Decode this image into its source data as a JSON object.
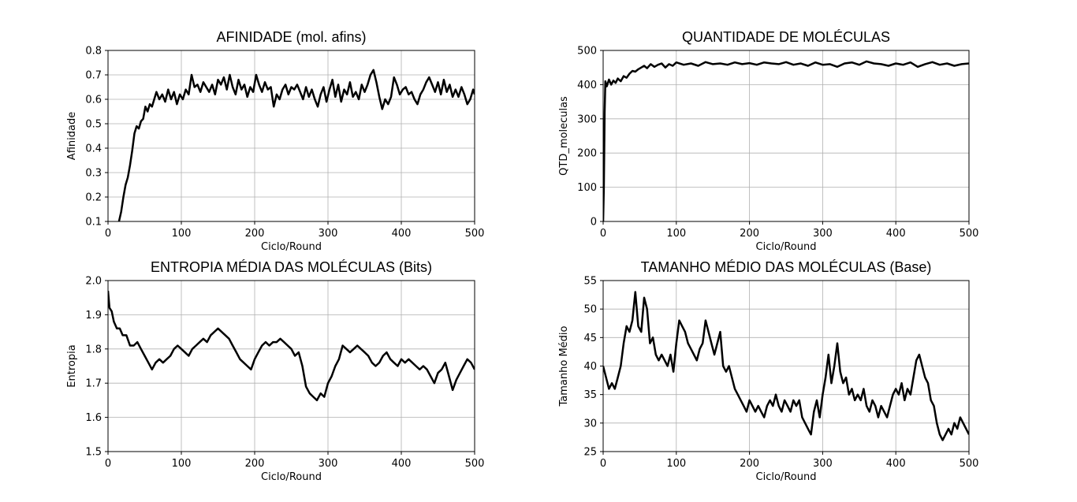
{
  "chart_data": [
    {
      "type": "line",
      "title": "AFINIDADE (mol. afins)",
      "xlabel": "Ciclo/Round",
      "ylabel": "Afinidade",
      "xlim": [
        0,
        500
      ],
      "ylim": [
        0.1,
        0.8
      ],
      "xticks": [
        "0",
        "100",
        "200",
        "300",
        "400",
        "500"
      ],
      "yticks": [
        "0.1",
        "0.2",
        "0.3",
        "0.4",
        "0.5",
        "0.6",
        "0.7",
        "0.8"
      ],
      "grid": true,
      "line_color": "#000000",
      "series": [
        {
          "x": [
            15,
            18,
            21,
            24,
            27,
            30,
            33,
            36,
            39,
            42,
            45,
            48,
            51,
            54,
            57,
            60,
            63,
            66,
            70,
            74,
            78,
            82,
            86,
            90,
            94,
            98,
            102,
            106,
            110,
            114,
            118,
            122,
            126,
            130,
            134,
            138,
            142,
            146,
            150,
            154,
            158,
            162,
            166,
            170,
            174,
            178,
            182,
            186,
            190,
            194,
            198,
            202,
            206,
            210,
            214,
            218,
            222,
            226,
            230,
            234,
            238,
            242,
            246,
            250,
            254,
            258,
            262,
            266,
            270,
            274,
            278,
            282,
            286,
            290,
            294,
            298,
            302,
            306,
            310,
            314,
            318,
            322,
            326,
            330,
            334,
            338,
            342,
            346,
            350,
            354,
            358,
            362,
            366,
            370,
            374,
            378,
            382,
            386,
            390,
            394,
            398,
            402,
            406,
            410,
            414,
            418,
            422,
            426,
            430,
            434,
            438,
            442,
            446,
            450,
            454,
            458,
            462,
            466,
            470,
            474,
            478,
            482,
            486,
            490,
            494,
            498,
            500
          ],
          "y": [
            0.1,
            0.14,
            0.2,
            0.25,
            0.28,
            0.33,
            0.39,
            0.46,
            0.49,
            0.48,
            0.51,
            0.52,
            0.57,
            0.55,
            0.58,
            0.57,
            0.6,
            0.63,
            0.6,
            0.62,
            0.59,
            0.64,
            0.6,
            0.63,
            0.58,
            0.62,
            0.6,
            0.64,
            0.62,
            0.7,
            0.65,
            0.66,
            0.63,
            0.67,
            0.65,
            0.63,
            0.66,
            0.62,
            0.68,
            0.66,
            0.69,
            0.64,
            0.7,
            0.65,
            0.62,
            0.68,
            0.64,
            0.66,
            0.61,
            0.65,
            0.63,
            0.7,
            0.66,
            0.63,
            0.67,
            0.64,
            0.65,
            0.57,
            0.62,
            0.6,
            0.64,
            0.66,
            0.62,
            0.65,
            0.64,
            0.66,
            0.63,
            0.6,
            0.65,
            0.61,
            0.64,
            0.6,
            0.57,
            0.62,
            0.65,
            0.59,
            0.64,
            0.68,
            0.61,
            0.66,
            0.59,
            0.64,
            0.62,
            0.67,
            0.61,
            0.63,
            0.6,
            0.66,
            0.63,
            0.66,
            0.7,
            0.72,
            0.67,
            0.61,
            0.56,
            0.6,
            0.58,
            0.61,
            0.69,
            0.66,
            0.62,
            0.64,
            0.65,
            0.62,
            0.63,
            0.6,
            0.58,
            0.62,
            0.64,
            0.67,
            0.69,
            0.66,
            0.63,
            0.67,
            0.62,
            0.68,
            0.63,
            0.66,
            0.61,
            0.64,
            0.61,
            0.65,
            0.62,
            0.58,
            0.6,
            0.64,
            0.62
          ]
        }
      ]
    },
    {
      "type": "line",
      "title": "QUANTIDADE DE MOLÉCULAS",
      "xlabel": "Ciclo/Round",
      "ylabel": "QTD_moleculas",
      "xlim": [
        0,
        500
      ],
      "ylim": [
        0,
        500
      ],
      "xticks": [
        "0",
        "100",
        "200",
        "300",
        "400",
        "500"
      ],
      "yticks": [
        "0",
        "100",
        "200",
        "300",
        "400",
        "500"
      ],
      "grid": true,
      "line_color": "#000000",
      "series": [
        {
          "x": [
            0,
            1,
            2,
            3,
            5,
            8,
            11,
            14,
            17,
            20,
            24,
            28,
            32,
            36,
            40,
            44,
            48,
            52,
            56,
            60,
            65,
            70,
            75,
            80,
            85,
            90,
            95,
            100,
            110,
            120,
            130,
            140,
            150,
            160,
            170,
            180,
            190,
            200,
            210,
            220,
            230,
            240,
            250,
            260,
            270,
            280,
            290,
            300,
            310,
            320,
            330,
            340,
            350,
            360,
            370,
            380,
            390,
            400,
            410,
            420,
            430,
            440,
            450,
            460,
            470,
            480,
            490,
            500
          ],
          "y": [
            0,
            100,
            320,
            410,
            395,
            415,
            400,
            412,
            405,
            418,
            410,
            425,
            420,
            432,
            440,
            438,
            445,
            450,
            455,
            448,
            460,
            452,
            458,
            462,
            450,
            460,
            455,
            465,
            458,
            462,
            455,
            466,
            460,
            462,
            458,
            465,
            460,
            463,
            458,
            465,
            462,
            460,
            466,
            458,
            462,
            455,
            465,
            458,
            460,
            452,
            462,
            465,
            458,
            468,
            462,
            460,
            455,
            462,
            458,
            465,
            452,
            460,
            466,
            458,
            462,
            455,
            460,
            462
          ]
        }
      ]
    },
    {
      "type": "line",
      "title": "ENTROPIA MÉDIA DAS MOLÉCULAS (Bits)",
      "xlabel": "Ciclo/Round",
      "ylabel": "Entropia",
      "xlim": [
        0,
        500
      ],
      "ylim": [
        1.5,
        2.0
      ],
      "xticks": [
        "0",
        "100",
        "200",
        "300",
        "400",
        "500"
      ],
      "yticks": [
        "1.5",
        "1.6",
        "1.7",
        "1.8",
        "1.9",
        "2.0"
      ],
      "grid": true,
      "line_color": "#000000",
      "series": [
        {
          "x": [
            0,
            2,
            5,
            8,
            12,
            16,
            20,
            25,
            30,
            35,
            40,
            45,
            50,
            55,
            60,
            65,
            70,
            75,
            80,
            85,
            90,
            95,
            100,
            105,
            110,
            115,
            120,
            125,
            130,
            135,
            140,
            145,
            150,
            155,
            160,
            165,
            170,
            175,
            180,
            185,
            190,
            195,
            200,
            205,
            210,
            215,
            220,
            225,
            230,
            235,
            240,
            245,
            250,
            255,
            260,
            265,
            270,
            275,
            280,
            285,
            290,
            295,
            300,
            305,
            310,
            315,
            320,
            325,
            330,
            335,
            340,
            345,
            350,
            355,
            360,
            365,
            370,
            375,
            380,
            385,
            390,
            395,
            400,
            405,
            410,
            415,
            420,
            425,
            430,
            435,
            440,
            445,
            450,
            455,
            460,
            465,
            470,
            475,
            480,
            485,
            490,
            495,
            500
          ],
          "y": [
            1.97,
            1.92,
            1.91,
            1.88,
            1.86,
            1.86,
            1.84,
            1.84,
            1.81,
            1.81,
            1.82,
            1.8,
            1.78,
            1.76,
            1.74,
            1.76,
            1.77,
            1.76,
            1.77,
            1.78,
            1.8,
            1.81,
            1.8,
            1.79,
            1.78,
            1.8,
            1.81,
            1.82,
            1.83,
            1.82,
            1.84,
            1.85,
            1.86,
            1.85,
            1.84,
            1.83,
            1.81,
            1.79,
            1.77,
            1.76,
            1.75,
            1.74,
            1.77,
            1.79,
            1.81,
            1.82,
            1.81,
            1.82,
            1.82,
            1.83,
            1.82,
            1.81,
            1.8,
            1.78,
            1.79,
            1.75,
            1.69,
            1.67,
            1.66,
            1.65,
            1.67,
            1.66,
            1.7,
            1.72,
            1.75,
            1.77,
            1.81,
            1.8,
            1.79,
            1.8,
            1.81,
            1.8,
            1.79,
            1.78,
            1.76,
            1.75,
            1.76,
            1.78,
            1.79,
            1.77,
            1.76,
            1.75,
            1.77,
            1.76,
            1.77,
            1.76,
            1.75,
            1.74,
            1.75,
            1.74,
            1.72,
            1.7,
            1.73,
            1.74,
            1.76,
            1.72,
            1.68,
            1.71,
            1.73,
            1.75,
            1.77,
            1.76,
            1.74
          ]
        }
      ]
    },
    {
      "type": "line",
      "title": "TAMANHO MÉDIO DAS MOLÉCULAS (Base)",
      "xlabel": "Ciclo/Round",
      "ylabel": "Tamanho Médio",
      "xlim": [
        0,
        500
      ],
      "ylim": [
        25,
        55
      ],
      "xticks": [
        "0",
        "100",
        "200",
        "300",
        "400",
        "500"
      ],
      "yticks": [
        "25",
        "30",
        "35",
        "40",
        "45",
        "50",
        "55"
      ],
      "grid": true,
      "line_color": "#000000",
      "series": [
        {
          "x": [
            0,
            4,
            8,
            12,
            16,
            20,
            24,
            28,
            32,
            36,
            40,
            44,
            48,
            52,
            56,
            60,
            64,
            68,
            72,
            76,
            80,
            84,
            88,
            92,
            96,
            100,
            104,
            108,
            112,
            116,
            120,
            124,
            128,
            132,
            136,
            140,
            144,
            148,
            152,
            156,
            160,
            164,
            168,
            172,
            176,
            180,
            184,
            188,
            192,
            196,
            200,
            204,
            208,
            212,
            216,
            220,
            224,
            228,
            232,
            236,
            240,
            244,
            248,
            252,
            256,
            260,
            264,
            268,
            272,
            276,
            280,
            284,
            288,
            292,
            296,
            300,
            304,
            308,
            312,
            316,
            320,
            324,
            328,
            332,
            336,
            340,
            344,
            348,
            352,
            356,
            360,
            364,
            368,
            372,
            376,
            380,
            384,
            388,
            392,
            396,
            400,
            404,
            408,
            412,
            416,
            420,
            424,
            428,
            432,
            436,
            440,
            444,
            448,
            452,
            456,
            460,
            464,
            468,
            472,
            476,
            480,
            484,
            488,
            492,
            496,
            500
          ],
          "y": [
            40,
            38,
            36,
            37,
            36,
            38,
            40,
            44,
            47,
            46,
            48,
            53,
            47,
            46,
            52,
            50,
            44,
            45,
            42,
            41,
            42,
            41,
            40,
            42,
            39,
            44,
            48,
            47,
            46,
            44,
            43,
            42,
            41,
            43,
            44,
            48,
            46,
            44,
            42,
            44,
            46,
            40,
            39,
            40,
            38,
            36,
            35,
            34,
            33,
            32,
            34,
            33,
            32,
            33,
            32,
            31,
            33,
            34,
            33,
            35,
            33,
            32,
            34,
            33,
            32,
            34,
            33,
            34,
            31,
            30,
            29,
            28,
            32,
            34,
            31,
            35,
            38,
            42,
            37,
            40,
            44,
            39,
            37,
            38,
            35,
            36,
            34,
            35,
            34,
            36,
            33,
            32,
            34,
            33,
            31,
            33,
            32,
            31,
            33,
            35,
            36,
            35,
            37,
            34,
            36,
            35,
            38,
            41,
            42,
            40,
            38,
            37,
            34,
            33,
            30,
            28,
            27,
            28,
            29,
            28,
            30,
            29,
            31,
            30,
            29,
            28
          ]
        }
      ]
    }
  ]
}
